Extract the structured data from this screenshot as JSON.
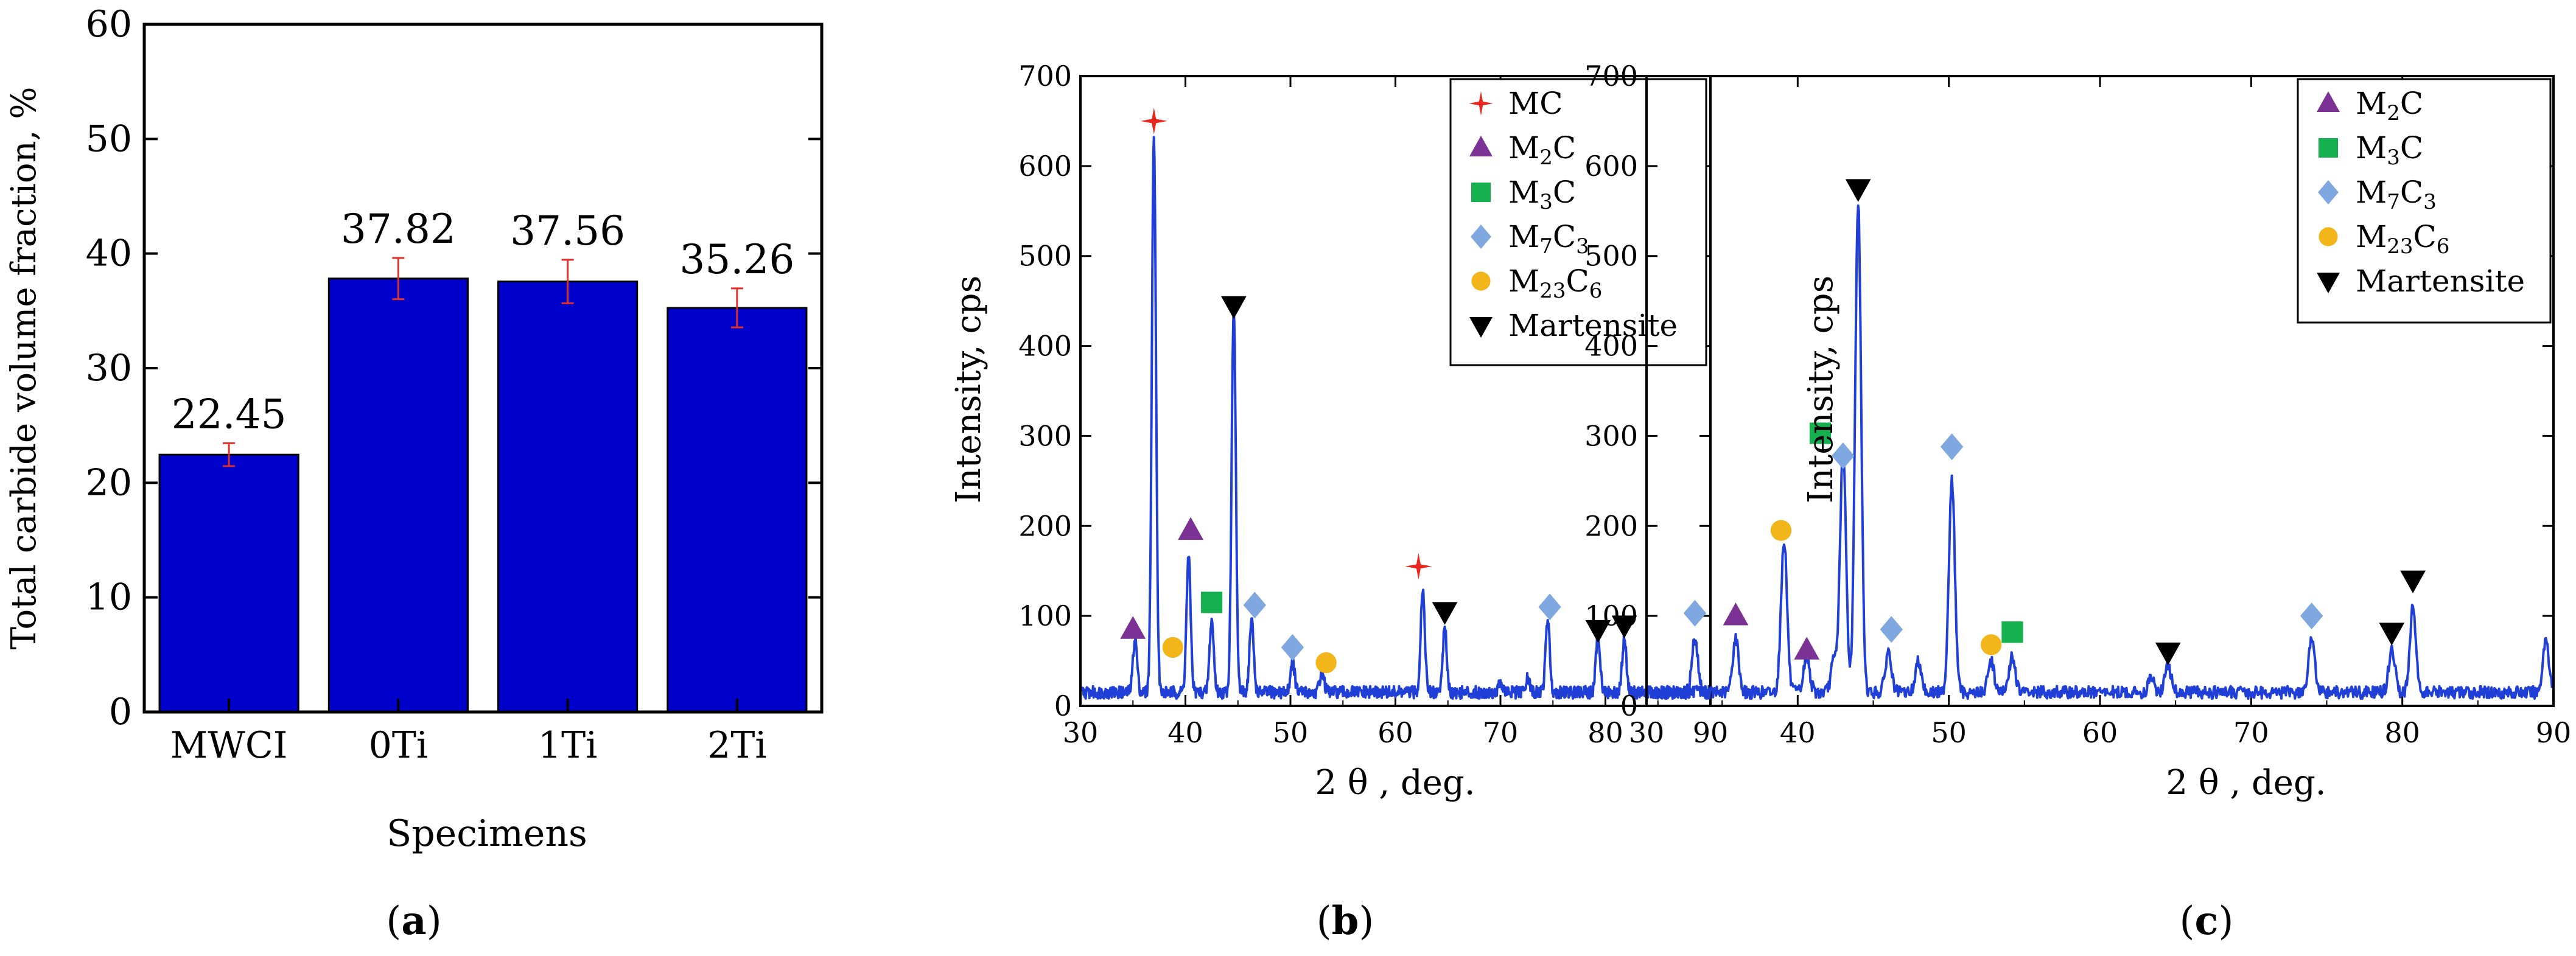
{
  "chart_data": [
    {
      "type": "bar",
      "panel_label": "a",
      "ylabel": "Total carbide volume fraction, %",
      "xlabel": "Specimens",
      "categories": [
        "MWCI",
        "0Ti",
        "1Ti",
        "2Ti"
      ],
      "values": [
        22.45,
        37.82,
        37.56,
        35.26
      ],
      "value_labels": [
        "22.45",
        "37.82",
        "37.56",
        "35.26"
      ],
      "errors": [
        1.0,
        1.8,
        1.9,
        1.7
      ],
      "ylim": [
        0,
        60
      ],
      "yticks": [
        0,
        10,
        20,
        30,
        40,
        50,
        60
      ],
      "bar_color": "#0000cc",
      "error_color": "#e0302c"
    },
    {
      "type": "line",
      "panel_label": "b",
      "xlabel": "2 θ , deg.",
      "ylabel": "Intensity, cps",
      "xlim": [
        30,
        90
      ],
      "ylim": [
        0,
        700
      ],
      "xticks": [
        30,
        40,
        50,
        60,
        70,
        80,
        90
      ],
      "yticks": [
        0,
        100,
        200,
        300,
        400,
        500,
        600,
        700
      ],
      "line_color": "#1f3fd6",
      "baseline": 15,
      "peaks": [
        [
          35.2,
          60
        ],
        [
          37.0,
          620
        ],
        [
          40.3,
          150
        ],
        [
          42.5,
          80
        ],
        [
          44.6,
          430
        ],
        [
          46.3,
          80
        ],
        [
          50.2,
          35
        ],
        [
          53.0,
          25
        ],
        [
          62.6,
          115
        ],
        [
          64.7,
          70
        ],
        [
          70.0,
          10
        ],
        [
          72.6,
          15
        ],
        [
          74.5,
          80
        ],
        [
          79.3,
          65
        ],
        [
          81.8,
          60
        ]
      ],
      "markers": [
        {
          "phase": "MC",
          "x": 37.0,
          "y": 650
        },
        {
          "phase": "M2C",
          "x": 35.0,
          "y": 85
        },
        {
          "phase": "Martensite",
          "x": 44.6,
          "y": 445
        },
        {
          "phase": "M2C",
          "x": 40.5,
          "y": 195
        },
        {
          "phase": "M3C",
          "x": 42.5,
          "y": 115
        },
        {
          "phase": "M23C6",
          "x": 38.8,
          "y": 65
        },
        {
          "phase": "M7C3",
          "x": 46.6,
          "y": 112
        },
        {
          "phase": "M7C3",
          "x": 50.2,
          "y": 65
        },
        {
          "phase": "M23C6",
          "x": 53.4,
          "y": 48
        },
        {
          "phase": "MC",
          "x": 62.2,
          "y": 155
        },
        {
          "phase": "Martensite",
          "x": 64.7,
          "y": 105
        },
        {
          "phase": "M7C3",
          "x": 74.7,
          "y": 110
        },
        {
          "phase": "Martensite",
          "x": 79.3,
          "y": 85
        },
        {
          "phase": "Martensite",
          "x": 81.8,
          "y": 90
        }
      ],
      "legend": [
        {
          "phase": "MC",
          "label": "MC",
          "sub": ""
        },
        {
          "phase": "M2C",
          "label": "M",
          "sub": "2",
          "suffix": "C"
        },
        {
          "phase": "M3C",
          "label": "M",
          "sub": "3",
          "suffix": "C"
        },
        {
          "phase": "M7C3",
          "label": "M",
          "sub": "7",
          "suffix": "C",
          "sub2": "3"
        },
        {
          "phase": "M23C6",
          "label": "M",
          "sub": "23",
          "suffix": "C",
          "sub2": "6"
        },
        {
          "phase": "Martensite",
          "label": "Martensite",
          "sub": ""
        }
      ]
    },
    {
      "type": "line",
      "panel_label": "c",
      "xlabel": "2 θ , deg.",
      "ylabel": "Intensity, cps",
      "xlim": [
        30,
        90
      ],
      "ylim": [
        0,
        700
      ],
      "xticks": [
        30,
        40,
        50,
        60,
        70,
        80,
        90
      ],
      "yticks": [
        0,
        100,
        200,
        300,
        400,
        500,
        600,
        700
      ],
      "line_color": "#1f3fd6",
      "baseline": 15,
      "peaks": [
        [
          33.2,
          60
        ],
        [
          35.9,
          60
        ],
        [
          39.1,
          170
        ],
        [
          40.6,
          40
        ],
        [
          42.4,
          35
        ],
        [
          43.0,
          270
        ],
        [
          44.0,
          545
        ],
        [
          46.0,
          45
        ],
        [
          48.0,
          35
        ],
        [
          50.2,
          235
        ],
        [
          52.8,
          35
        ],
        [
          54.2,
          40
        ],
        [
          63.4,
          15
        ],
        [
          64.5,
          30
        ],
        [
          74.0,
          60
        ],
        [
          79.3,
          50
        ],
        [
          80.7,
          95
        ],
        [
          89.5,
          60
        ]
      ],
      "markers": [
        {
          "phase": "M7C3",
          "x": 33.2,
          "y": 103
        },
        {
          "phase": "M2C",
          "x": 35.9,
          "y": 100
        },
        {
          "phase": "M23C6",
          "x": 38.9,
          "y": 195
        },
        {
          "phase": "M2C",
          "x": 40.6,
          "y": 62
        },
        {
          "phase": "M3C",
          "x": 41.5,
          "y": 303
        },
        {
          "phase": "M7C3",
          "x": 43.0,
          "y": 278
        },
        {
          "phase": "Martensite",
          "x": 44.0,
          "y": 575
        },
        {
          "phase": "M7C3",
          "x": 46.2,
          "y": 85
        },
        {
          "phase": "M7C3",
          "x": 50.2,
          "y": 288
        },
        {
          "phase": "M23C6",
          "x": 52.8,
          "y": 68
        },
        {
          "phase": "M3C",
          "x": 54.2,
          "y": 82
        },
        {
          "phase": "Martensite",
          "x": 64.5,
          "y": 60
        },
        {
          "phase": "M7C3",
          "x": 74.0,
          "y": 100
        },
        {
          "phase": "Martensite",
          "x": 79.3,
          "y": 82
        },
        {
          "phase": "Martensite",
          "x": 80.7,
          "y": 140
        }
      ],
      "legend": [
        {
          "phase": "M2C",
          "label": "M",
          "sub": "2",
          "suffix": "C"
        },
        {
          "phase": "M3C",
          "label": "M",
          "sub": "3",
          "suffix": "C"
        },
        {
          "phase": "M7C3",
          "label": "M",
          "sub": "7",
          "suffix": "C",
          "sub2": "3"
        },
        {
          "phase": "M23C6",
          "label": "M",
          "sub": "23",
          "suffix": "C",
          "sub2": "6"
        },
        {
          "phase": "Martensite",
          "label": "Martensite",
          "sub": ""
        }
      ]
    }
  ],
  "phase_colors": {
    "MC": "#e8261d",
    "M2C": "#7b3294",
    "M3C": "#16b14f",
    "M7C3": "#7fa8e0",
    "M23C6": "#f2b51a",
    "Martensite": "#000000"
  }
}
